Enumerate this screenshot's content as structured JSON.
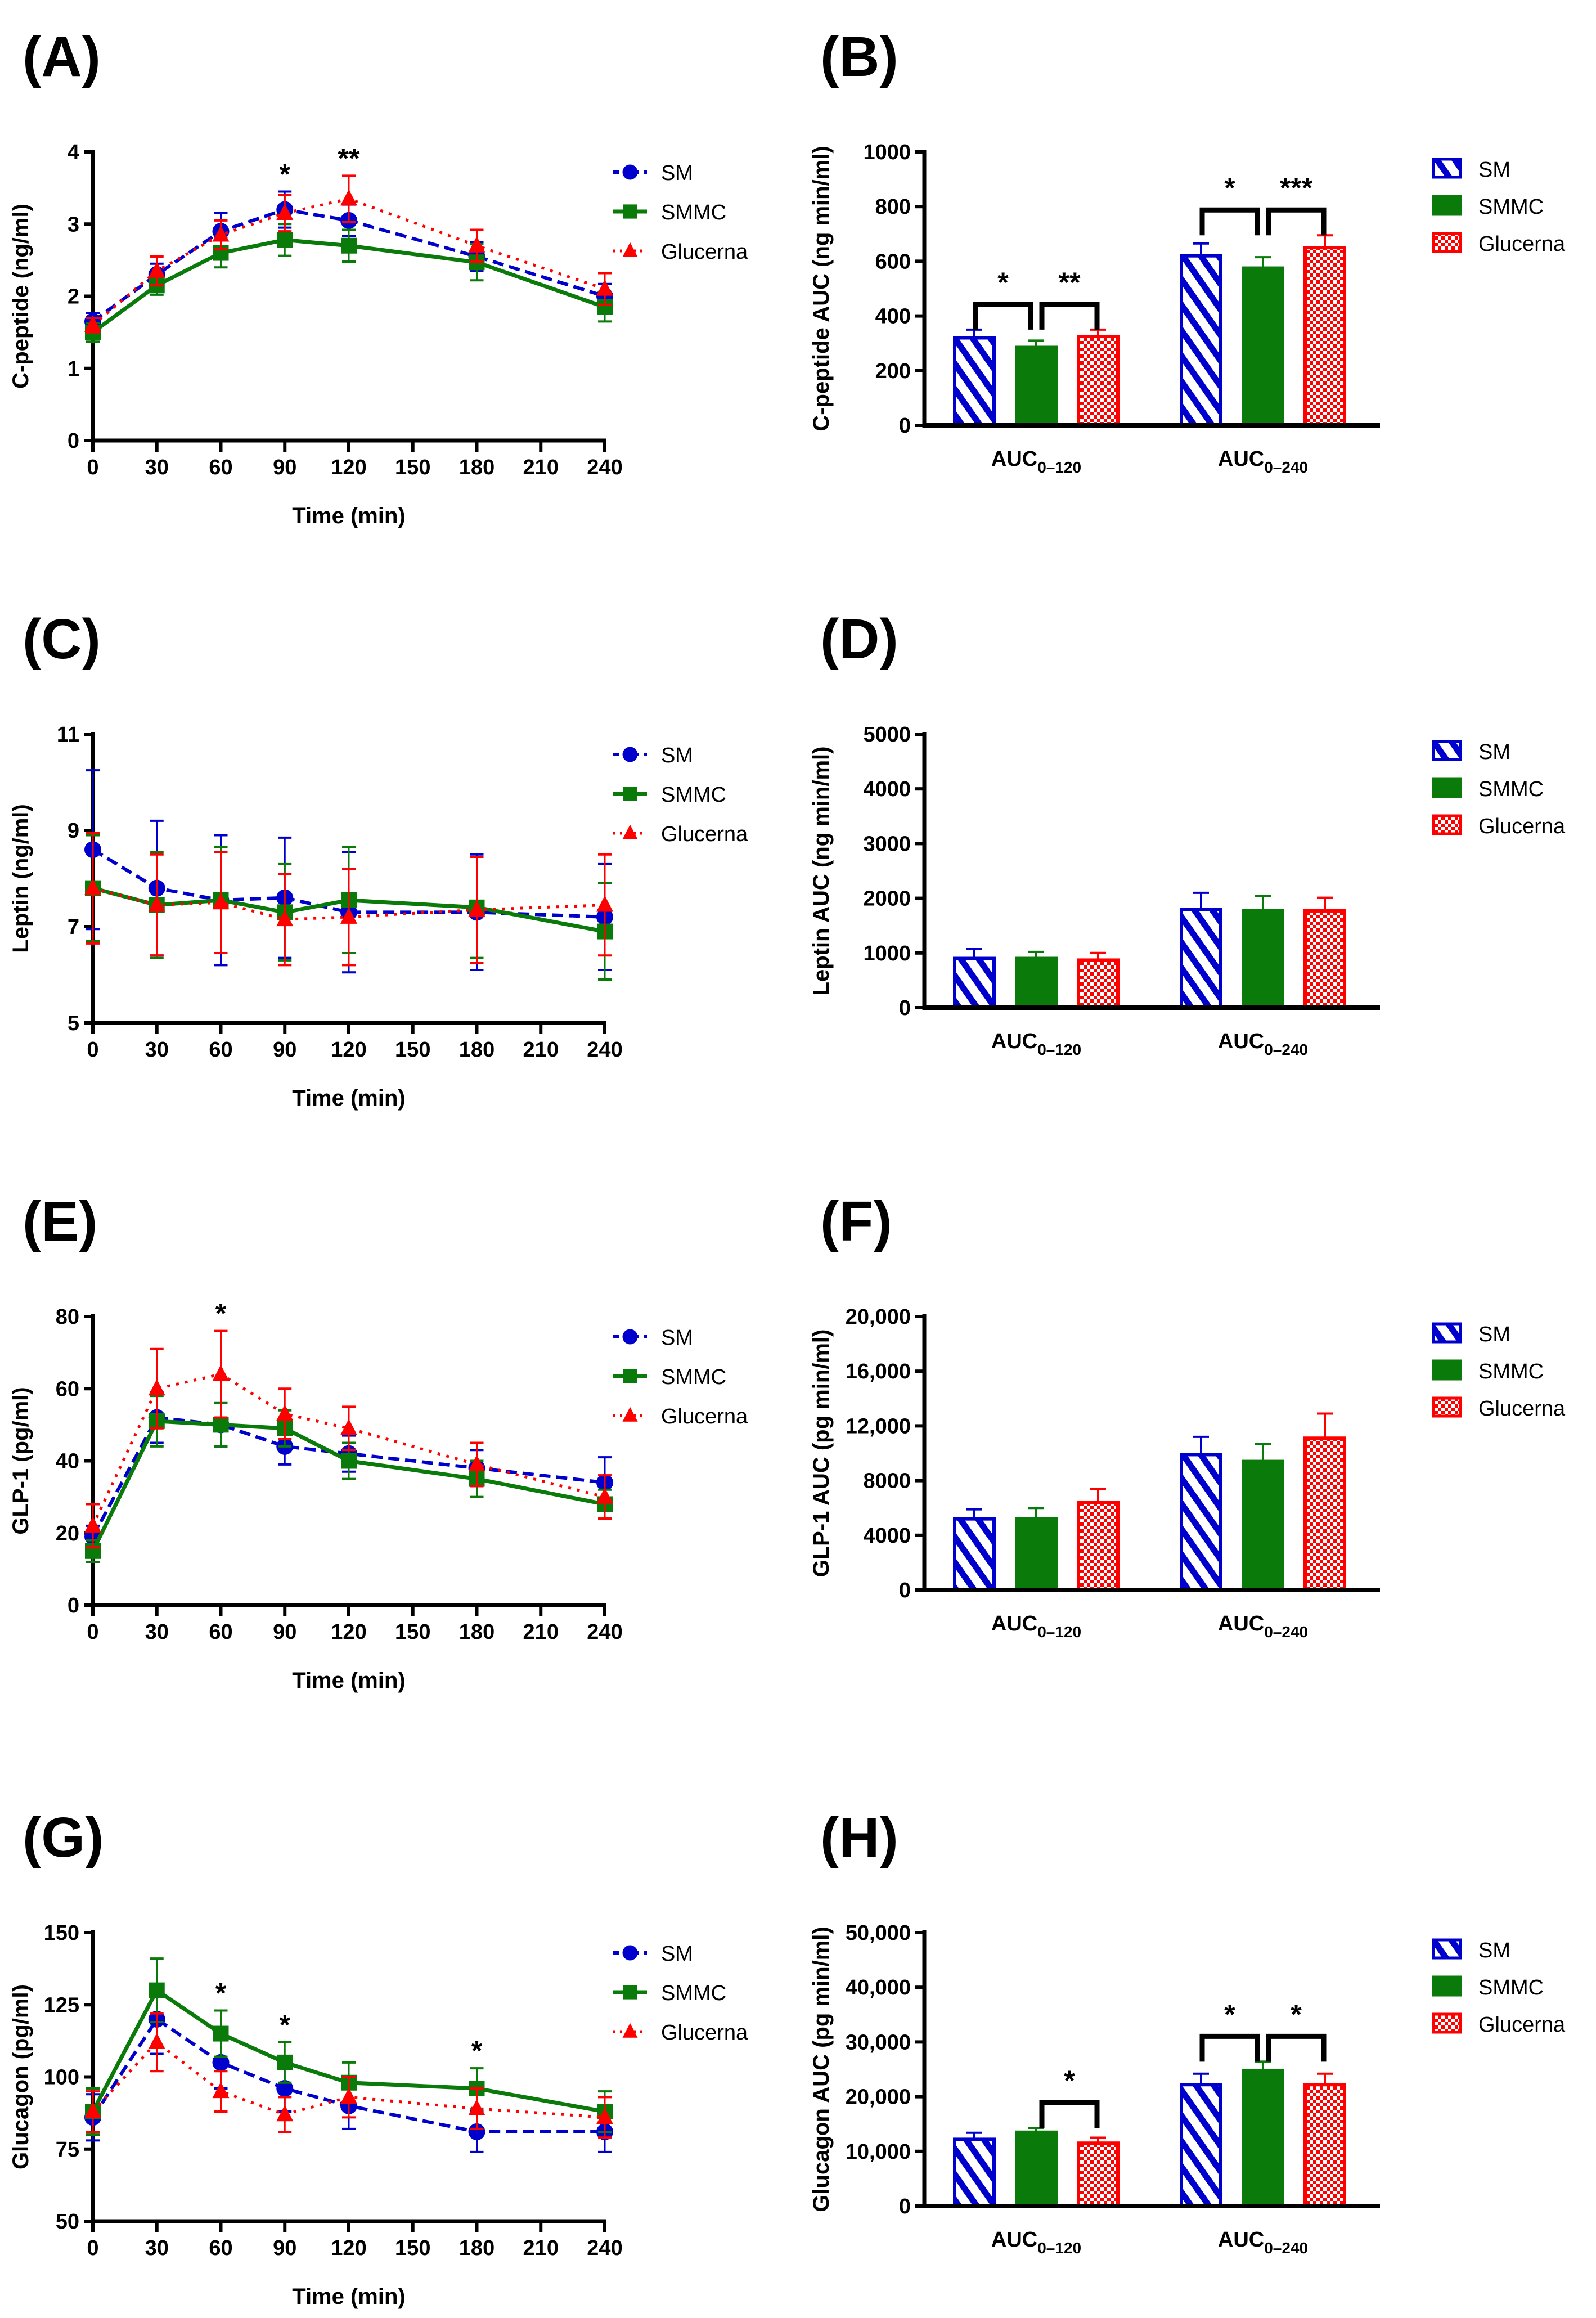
{
  "colors": {
    "SM": "#0000CC",
    "SMMC": "#0A7A0A",
    "Glucerna": "#FF0000"
  },
  "chart_data": [
    {
      "panel": "(A)",
      "type": "line",
      "ylabel": "C-peptide (ng/ml)",
      "xlabel": "Time (min)",
      "ylim": [
        0,
        4
      ],
      "yticks": [
        "0",
        "1",
        "2",
        "3",
        "4"
      ],
      "ytick_values": [
        0,
        1,
        2,
        3,
        4
      ],
      "xticks": [
        0,
        30,
        60,
        90,
        120,
        150,
        180,
        210,
        240
      ],
      "x": [
        0,
        30,
        60,
        90,
        120,
        180,
        240
      ],
      "legend": [
        "SM",
        "SMMC",
        "Glucerna"
      ],
      "series": [
        {
          "name": "SM",
          "values": [
            1.65,
            2.3,
            2.9,
            3.2,
            3.05,
            2.55,
            2.0
          ],
          "err": [
            0.12,
            0.15,
            0.25,
            0.25,
            0.22,
            0.2,
            0.17
          ]
        },
        {
          "name": "SMMC",
          "values": [
            1.5,
            2.15,
            2.6,
            2.78,
            2.7,
            2.47,
            1.85
          ],
          "err": [
            0.13,
            0.13,
            0.2,
            0.22,
            0.22,
            0.25,
            0.2
          ]
        },
        {
          "name": "Glucerna",
          "values": [
            1.6,
            2.35,
            2.85,
            3.15,
            3.35,
            2.7,
            2.1
          ],
          "err": [
            0.1,
            0.2,
            0.2,
            0.25,
            0.32,
            0.22,
            0.22
          ]
        }
      ],
      "annotations": [
        {
          "x": 90,
          "text": "*"
        },
        {
          "x": 120,
          "text": "**"
        }
      ]
    },
    {
      "panel": "(B)",
      "type": "bar",
      "ylabel": "C-peptide AUC (ng min/ml)",
      "ylim": [
        0,
        1000
      ],
      "yticks": [
        "0",
        "200",
        "400",
        "600",
        "800",
        "1000"
      ],
      "ytick_values": [
        0,
        200,
        400,
        600,
        800,
        1000
      ],
      "categories": [
        {
          "main": "AUC",
          "sub": "0–120"
        },
        {
          "main": "AUC",
          "sub": "0–240"
        }
      ],
      "legend": [
        "SM",
        "SMMC",
        "Glucerna"
      ],
      "series": [
        {
          "name": "SM",
          "values": [
            320,
            620
          ],
          "err": [
            30,
            45
          ]
        },
        {
          "name": "SMMC",
          "values": [
            285,
            575
          ],
          "err": [
            25,
            40
          ]
        },
        {
          "name": "Glucerna",
          "values": [
            325,
            650
          ],
          "err": [
            25,
            45
          ]
        }
      ],
      "brackets": [
        {
          "group": 0,
          "from": 0,
          "to": 1,
          "text": "*"
        },
        {
          "group": 0,
          "from": 1,
          "to": 2,
          "text": "**"
        },
        {
          "group": 1,
          "from": 0,
          "to": 1,
          "text": "*"
        },
        {
          "group": 1,
          "from": 1,
          "to": 2,
          "text": "***"
        }
      ]
    },
    {
      "panel": "(C)",
      "type": "line",
      "ylabel": "Leptin (ng/ml)",
      "xlabel": "Time (min)",
      "ylim": [
        5,
        11
      ],
      "yticks": [
        "5",
        "7",
        "9",
        "11"
      ],
      "ytick_values": [
        5,
        7,
        9,
        11
      ],
      "xticks": [
        0,
        30,
        60,
        90,
        120,
        150,
        180,
        210,
        240
      ],
      "x": [
        0,
        30,
        60,
        90,
        120,
        180,
        240
      ],
      "legend": [
        "SM",
        "SMMC",
        "Glucerna"
      ],
      "series": [
        {
          "name": "SM",
          "values": [
            8.6,
            7.8,
            7.55,
            7.6,
            7.3,
            7.3,
            7.2
          ],
          "err": [
            1.65,
            1.4,
            1.35,
            1.25,
            1.25,
            1.2,
            1.1
          ]
        },
        {
          "name": "SMMC",
          "values": [
            7.8,
            7.45,
            7.55,
            7.3,
            7.55,
            7.4,
            6.9
          ],
          "err": [
            1.1,
            1.1,
            1.1,
            1.0,
            1.1,
            1.05,
            1.0
          ]
        },
        {
          "name": "Glucerna",
          "values": [
            7.8,
            7.45,
            7.5,
            7.15,
            7.2,
            7.35,
            7.45
          ],
          "err": [
            1.15,
            1.05,
            1.05,
            0.95,
            1.0,
            1.1,
            1.05
          ]
        }
      ],
      "annotations": []
    },
    {
      "panel": "(D)",
      "type": "bar",
      "ylabel": "Leptin AUC (ng min/ml)",
      "ylim": [
        0,
        5000
      ],
      "yticks": [
        "0",
        "1000",
        "2000",
        "3000",
        "4000",
        "5000"
      ],
      "ytick_values": [
        0,
        1000,
        2000,
        3000,
        4000,
        5000
      ],
      "categories": [
        {
          "main": "AUC",
          "sub": "0–120"
        },
        {
          "main": "AUC",
          "sub": "0–240"
        }
      ],
      "legend": [
        "SM",
        "SMMC",
        "Glucerna"
      ],
      "series": [
        {
          "name": "SM",
          "values": [
            900,
            1800
          ],
          "err": [
            170,
            300
          ]
        },
        {
          "name": "SMMC",
          "values": [
            900,
            1780
          ],
          "err": [
            120,
            260
          ]
        },
        {
          "name": "Glucerna",
          "values": [
            870,
            1770
          ],
          "err": [
            130,
            240
          ]
        }
      ],
      "brackets": []
    },
    {
      "panel": "(E)",
      "type": "line",
      "ylabel": "GLP-1 (pg/ml)",
      "xlabel": "Time (min)",
      "ylim": [
        0,
        80
      ],
      "yticks": [
        "0",
        "20",
        "40",
        "60",
        "80"
      ],
      "ytick_values": [
        0,
        20,
        40,
        60,
        80
      ],
      "xticks": [
        0,
        30,
        60,
        90,
        120,
        150,
        180,
        210,
        240
      ],
      "x": [
        0,
        30,
        60,
        90,
        120,
        180,
        240
      ],
      "legend": [
        "SM",
        "SMMC",
        "Glucerna"
      ],
      "series": [
        {
          "name": "SM",
          "values": [
            19,
            52,
            50,
            44,
            42,
            38,
            34
          ],
          "err": [
            3,
            7,
            6,
            5,
            5,
            5,
            7
          ]
        },
        {
          "name": "SMMC",
          "values": [
            15,
            51,
            50,
            49,
            40,
            35,
            28
          ],
          "err": [
            3,
            7,
            6,
            5,
            5,
            5,
            4
          ]
        },
        {
          "name": "Glucerna",
          "values": [
            22,
            60,
            64,
            53,
            49,
            39,
            30
          ],
          "err": [
            6,
            11,
            12,
            7,
            6,
            6,
            6
          ]
        }
      ],
      "annotations": [
        {
          "x": 60,
          "text": "*"
        }
      ]
    },
    {
      "panel": "(F)",
      "type": "bar",
      "ylabel": "GLP-1 AUC (pg min/ml)",
      "ylim": [
        0,
        20000
      ],
      "yticks": [
        "0",
        "4000",
        "8000",
        "12,000",
        "16,000",
        "20,000"
      ],
      "ytick_values": [
        0,
        4000,
        8000,
        12000,
        16000,
        20000
      ],
      "categories": [
        {
          "main": "AUC",
          "sub": "0–120"
        },
        {
          "main": "AUC",
          "sub": "0–240"
        }
      ],
      "legend": [
        "SM",
        "SMMC",
        "Glucerna"
      ],
      "series": [
        {
          "name": "SM",
          "values": [
            5200,
            9900
          ],
          "err": [
            700,
            1300
          ]
        },
        {
          "name": "SMMC",
          "values": [
            5200,
            9400
          ],
          "err": [
            800,
            1300
          ]
        },
        {
          "name": "Glucerna",
          "values": [
            6400,
            11100
          ],
          "err": [
            1000,
            1800
          ]
        }
      ],
      "brackets": []
    },
    {
      "panel": "(G)",
      "type": "line",
      "ylabel": "Glucagon (pg/ml)",
      "xlabel": "Time (min)",
      "ylim": [
        50,
        150
      ],
      "yticks": [
        "50",
        "75",
        "100",
        "125",
        "150"
      ],
      "ytick_values": [
        50,
        75,
        100,
        125,
        150
      ],
      "xticks": [
        0,
        30,
        60,
        90,
        120,
        150,
        180,
        210,
        240
      ],
      "x": [
        0,
        30,
        60,
        90,
        120,
        180,
        240
      ],
      "legend": [
        "SM",
        "SMMC",
        "Glucerna"
      ],
      "series": [
        {
          "name": "SM",
          "values": [
            86,
            120,
            105,
            96,
            90,
            81,
            81
          ],
          "err": [
            8,
            12,
            9,
            8,
            8,
            7,
            7
          ]
        },
        {
          "name": "SMMC",
          "values": [
            88,
            130,
            115,
            105,
            98,
            96,
            88
          ],
          "err": [
            8,
            11,
            8,
            7,
            7,
            7,
            7
          ]
        },
        {
          "name": "Glucerna",
          "values": [
            88,
            112,
            95,
            87,
            93,
            89,
            86
          ],
          "err": [
            7,
            10,
            7,
            6,
            7,
            7,
            7
          ]
        }
      ],
      "annotations": [
        {
          "x": 60,
          "text": "*"
        },
        {
          "x": 90,
          "text": "*"
        },
        {
          "x": 180,
          "text": "*"
        }
      ]
    },
    {
      "panel": "(H)",
      "type": "bar",
      "ylabel": "Glucagon AUC (pg min/ml)",
      "ylim": [
        0,
        50000
      ],
      "yticks": [
        "0",
        "10,000",
        "20,000",
        "30,000",
        "40,000",
        "50,000"
      ],
      "ytick_values": [
        0,
        10000,
        20000,
        30000,
        40000,
        50000
      ],
      "categories": [
        {
          "main": "AUC",
          "sub": "0–120"
        },
        {
          "main": "AUC",
          "sub": "0–240"
        }
      ],
      "legend": [
        "SM",
        "SMMC",
        "Glucerna"
      ],
      "series": [
        {
          "name": "SM",
          "values": [
            12200,
            22200
          ],
          "err": [
            1200,
            2000
          ]
        },
        {
          "name": "SMMC",
          "values": [
            13500,
            24800
          ],
          "err": [
            800,
            1600
          ]
        },
        {
          "name": "Glucerna",
          "values": [
            11500,
            22200
          ],
          "err": [
            1000,
            2000
          ]
        }
      ],
      "brackets": [
        {
          "group": 0,
          "from": 1,
          "to": 2,
          "text": "*"
        },
        {
          "group": 1,
          "from": 0,
          "to": 1,
          "text": "*"
        },
        {
          "group": 1,
          "from": 1,
          "to": 2,
          "text": "*"
        }
      ]
    }
  ]
}
